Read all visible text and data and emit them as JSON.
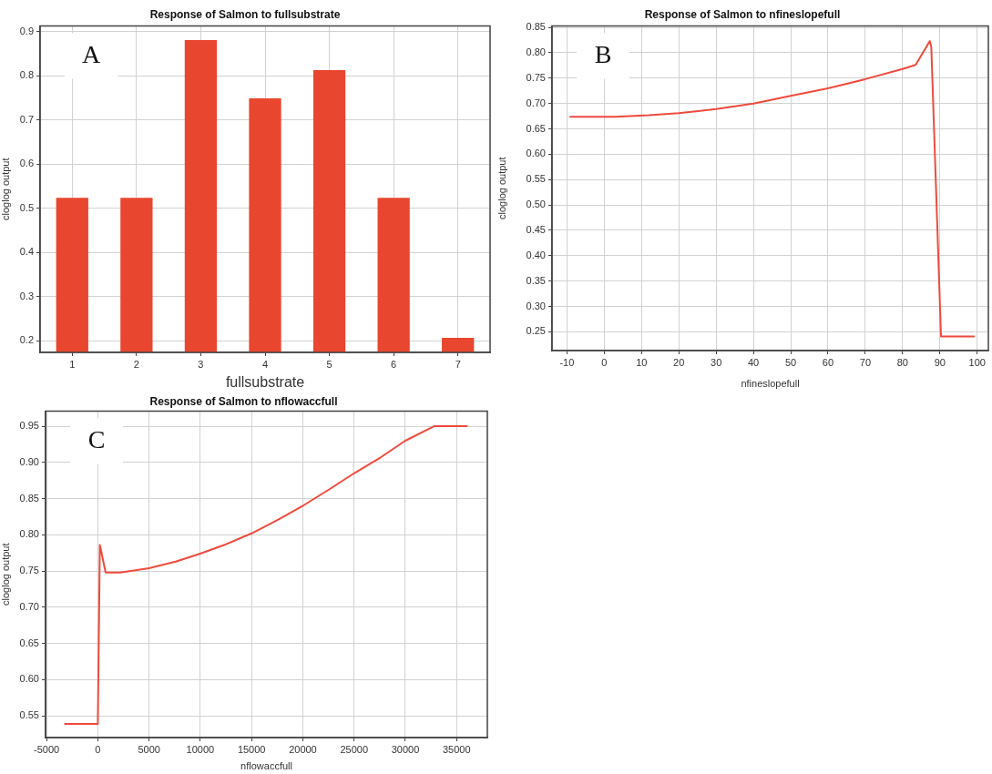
{
  "chart_data": [
    {
      "type": "bar",
      "title": "Response of Salmon to fullsubstrate",
      "xlabel": "fullsubstrate",
      "ylabel": "cloglog output",
      "categories": [
        "1",
        "2",
        "3",
        "4",
        "5",
        "6",
        "7"
      ],
      "values": [
        0.524,
        0.524,
        0.881,
        0.749,
        0.813,
        0.524,
        0.207
      ],
      "color": "#e9462f",
      "ylim": [
        0.174,
        0.913
      ],
      "yticks": [
        0.2,
        0.3,
        0.4,
        0.5,
        0.6,
        0.7,
        0.8,
        0.9
      ],
      "grid": true,
      "annotations": [
        "A"
      ]
    },
    {
      "type": "line",
      "title": "Response of Salmon to nfineslopefull",
      "xlabel": "nfineslopefull",
      "ylabel": "cloglog output",
      "x": [
        -9.1,
        3,
        12,
        20,
        30,
        40,
        50,
        60,
        70,
        80,
        83.5,
        87.3,
        87.7,
        90.3,
        99.1
      ],
      "values": [
        0.674,
        0.674,
        0.677,
        0.681,
        0.689,
        0.7,
        0.715,
        0.73,
        0.748,
        0.768,
        0.776,
        0.823,
        0.811,
        0.241,
        0.241
      ],
      "color": "#ee4b3e",
      "xlim": [
        -14,
        103
      ],
      "xticks": [
        -10,
        0,
        10,
        20,
        30,
        40,
        50,
        60,
        70,
        80,
        90,
        100
      ],
      "ylim": [
        0.213,
        0.853
      ],
      "yticks": [
        0.25,
        {
          "value": 0.3,
          "label": "0.30"
        },
        0.35,
        {
          "value": 0.4,
          "label": "0.40"
        },
        0.45,
        {
          "value": 0.5,
          "label": "0.50"
        },
        0.55,
        {
          "value": 0.6,
          "label": "0.60"
        },
        0.65,
        {
          "value": 0.7,
          "label": "0.70"
        },
        0.75,
        {
          "value": 0.8,
          "label": "0.80"
        },
        0.85
      ],
      "grid": true,
      "annotations": [
        "B"
      ]
    },
    {
      "type": "line",
      "title": "Response of Salmon to nflowaccfull",
      "xlabel": "nflowaccfull",
      "ylabel": "cloglog output",
      "x": [
        -3200,
        0,
        200,
        760,
        2200,
        5000,
        7600,
        10000,
        12500,
        15000,
        17600,
        20100,
        22600,
        25000,
        27600,
        30000,
        32800,
        36000
      ],
      "values": [
        0.539,
        0.539,
        0.786,
        0.748,
        0.748,
        0.754,
        0.763,
        0.774,
        0.787,
        0.802,
        0.821,
        0.841,
        0.863,
        0.885,
        0.907,
        0.93,
        0.95,
        0.95
      ],
      "color": "#ee4b3e",
      "xlim": [
        -5100,
        38000
      ],
      "xticks": [
        -5000,
        0,
        5000,
        10000,
        15000,
        20000,
        25000,
        30000,
        35000
      ],
      "ylim": [
        0.52,
        0.971
      ],
      "yticks": [
        0.55,
        {
          "value": 0.6,
          "label": "0.60"
        },
        0.65,
        {
          "value": 0.7,
          "label": "0.70"
        },
        0.75,
        {
          "value": 0.8,
          "label": "0.80"
        },
        0.85,
        {
          "value": 0.9,
          "label": "0.90"
        },
        0.95
      ],
      "grid": true,
      "annotations": [
        "C"
      ]
    }
  ]
}
